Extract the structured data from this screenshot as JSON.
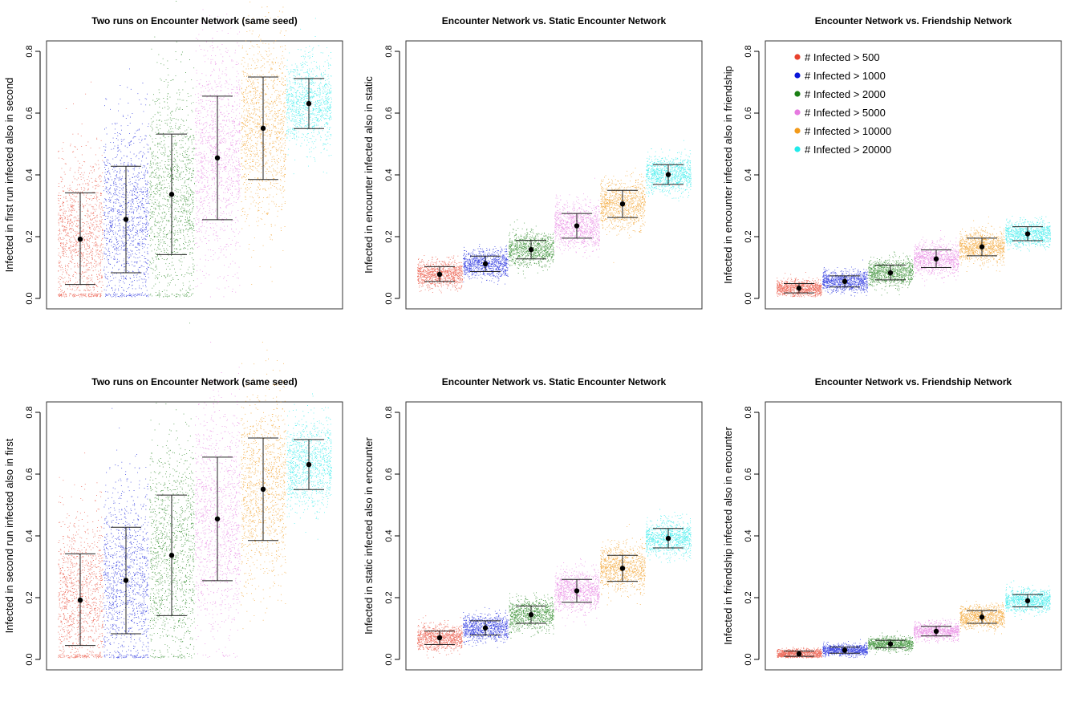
{
  "chart_data": [
    {
      "type": "scatter",
      "title": "Two runs on Encounter Network (same seed)",
      "ylabel": "Infected in first run infected also in second",
      "ylim": [
        0,
        0.8
      ],
      "yticks": [
        "0.0",
        "0.2",
        "0.4",
        "0.6",
        "0.8"
      ],
      "groups": [
        {
          "name": "# Infected > 500",
          "mean": 0.192,
          "low": 0.045,
          "high": 0.342
        },
        {
          "name": "# Infected > 1000",
          "mean": 0.256,
          "low": 0.083,
          "high": 0.428
        },
        {
          "name": "# Infected > 2000",
          "mean": 0.337,
          "low": 0.142,
          "high": 0.532
        },
        {
          "name": "# Infected > 5000",
          "mean": 0.455,
          "low": 0.255,
          "high": 0.655
        },
        {
          "name": "# Infected > 10000",
          "mean": 0.551,
          "low": 0.385,
          "high": 0.717
        },
        {
          "name": "# Infected > 20000",
          "mean": 0.631,
          "low": 0.55,
          "high": 0.712
        }
      ]
    },
    {
      "type": "scatter",
      "title": "Encounter Network vs. Static Encounter Network",
      "ylabel": "Infected in encounter infected also in static",
      "ylim": [
        0,
        0.8
      ],
      "yticks": [
        "0.0",
        "0.2",
        "0.4",
        "0.6",
        "0.8"
      ],
      "groups": [
        {
          "name": "# Infected > 500",
          "mean": 0.078,
          "low": 0.055,
          "high": 0.103
        },
        {
          "name": "# Infected > 1000",
          "mean": 0.112,
          "low": 0.087,
          "high": 0.137
        },
        {
          "name": "# Infected > 2000",
          "mean": 0.158,
          "low": 0.128,
          "high": 0.188
        },
        {
          "name": "# Infected > 5000",
          "mean": 0.235,
          "low": 0.195,
          "high": 0.275
        },
        {
          "name": "# Infected > 10000",
          "mean": 0.306,
          "low": 0.262,
          "high": 0.35
        },
        {
          "name": "# Infected > 20000",
          "mean": 0.401,
          "low": 0.369,
          "high": 0.433
        }
      ]
    },
    {
      "type": "scatter",
      "title": "Encounter Network vs. Friendship Network",
      "ylabel": "Infected in encounter infected also in friendship",
      "ylim": [
        0,
        0.8
      ],
      "yticks": [
        "0.0",
        "0.2",
        "0.4",
        "0.6",
        "0.8"
      ],
      "legend_position": "top-left",
      "groups": [
        {
          "name": "# Infected > 500",
          "mean": 0.033,
          "low": 0.018,
          "high": 0.048
        },
        {
          "name": "# Infected > 1000",
          "mean": 0.055,
          "low": 0.037,
          "high": 0.073
        },
        {
          "name": "# Infected > 2000",
          "mean": 0.083,
          "low": 0.06,
          "high": 0.108
        },
        {
          "name": "# Infected > 5000",
          "mean": 0.128,
          "low": 0.1,
          "high": 0.157
        },
        {
          "name": "# Infected > 10000",
          "mean": 0.167,
          "low": 0.138,
          "high": 0.195
        },
        {
          "name": "# Infected > 20000",
          "mean": 0.209,
          "low": 0.187,
          "high": 0.232
        }
      ]
    },
    {
      "type": "scatter",
      "title": "Two runs on Encounter Network (same seed)",
      "ylabel": "Infected in second run infected also in first",
      "ylim": [
        0,
        0.8
      ],
      "yticks": [
        "0.0",
        "0.2",
        "0.4",
        "0.6",
        "0.8"
      ],
      "groups": [
        {
          "name": "# Infected > 500",
          "mean": 0.192,
          "low": 0.045,
          "high": 0.342
        },
        {
          "name": "# Infected > 1000",
          "mean": 0.256,
          "low": 0.083,
          "high": 0.428
        },
        {
          "name": "# Infected > 2000",
          "mean": 0.337,
          "low": 0.142,
          "high": 0.532
        },
        {
          "name": "# Infected > 5000",
          "mean": 0.455,
          "low": 0.255,
          "high": 0.655
        },
        {
          "name": "# Infected > 10000",
          "mean": 0.551,
          "low": 0.385,
          "high": 0.717
        },
        {
          "name": "# Infected > 20000",
          "mean": 0.631,
          "low": 0.55,
          "high": 0.712
        }
      ]
    },
    {
      "type": "scatter",
      "title": "Encounter Network vs. Static Encounter Network",
      "ylabel": "Infected in static infected also in encounter",
      "ylim": [
        0,
        0.8
      ],
      "yticks": [
        "0.0",
        "0.2",
        "0.4",
        "0.6",
        "0.8"
      ],
      "groups": [
        {
          "name": "# Infected > 500",
          "mean": 0.07,
          "low": 0.048,
          "high": 0.092
        },
        {
          "name": "# Infected > 1000",
          "mean": 0.102,
          "low": 0.079,
          "high": 0.125
        },
        {
          "name": "# Infected > 2000",
          "mean": 0.145,
          "low": 0.117,
          "high": 0.173
        },
        {
          "name": "# Infected > 5000",
          "mean": 0.222,
          "low": 0.185,
          "high": 0.259
        },
        {
          "name": "# Infected > 10000",
          "mean": 0.295,
          "low": 0.253,
          "high": 0.337
        },
        {
          "name": "# Infected > 20000",
          "mean": 0.392,
          "low": 0.361,
          "high": 0.424
        }
      ]
    },
    {
      "type": "scatter",
      "title": "Encounter Network vs. Friendship Network",
      "ylabel": "Infected in friendship infected also in encounter",
      "ylim": [
        0,
        0.8
      ],
      "yticks": [
        "0.0",
        "0.2",
        "0.4",
        "0.6",
        "0.8"
      ],
      "groups": [
        {
          "name": "# Infected > 500",
          "mean": 0.018,
          "low": 0.01,
          "high": 0.027
        },
        {
          "name": "# Infected > 1000",
          "mean": 0.03,
          "low": 0.02,
          "high": 0.04
        },
        {
          "name": "# Infected > 2000",
          "mean": 0.05,
          "low": 0.038,
          "high": 0.062
        },
        {
          "name": "# Infected > 5000",
          "mean": 0.091,
          "low": 0.076,
          "high": 0.107
        },
        {
          "name": "# Infected > 10000",
          "mean": 0.137,
          "low": 0.117,
          "high": 0.158
        },
        {
          "name": "# Infected > 20000",
          "mean": 0.19,
          "low": 0.17,
          "high": 0.21
        }
      ]
    }
  ],
  "legend": {
    "items": [
      {
        "label": "# Infected > 500",
        "color": "#e8412d"
      },
      {
        "label": "# Infected > 1000",
        "color": "#0a16d9"
      },
      {
        "label": "# Infected > 2000",
        "color": "#1a7f14"
      },
      {
        "label": "# Infected > 5000",
        "color": "#e67ae0"
      },
      {
        "label": "# Infected > 10000",
        "color": "#f29a1a"
      },
      {
        "label": "# Infected > 20000",
        "color": "#22eaea"
      }
    ]
  }
}
